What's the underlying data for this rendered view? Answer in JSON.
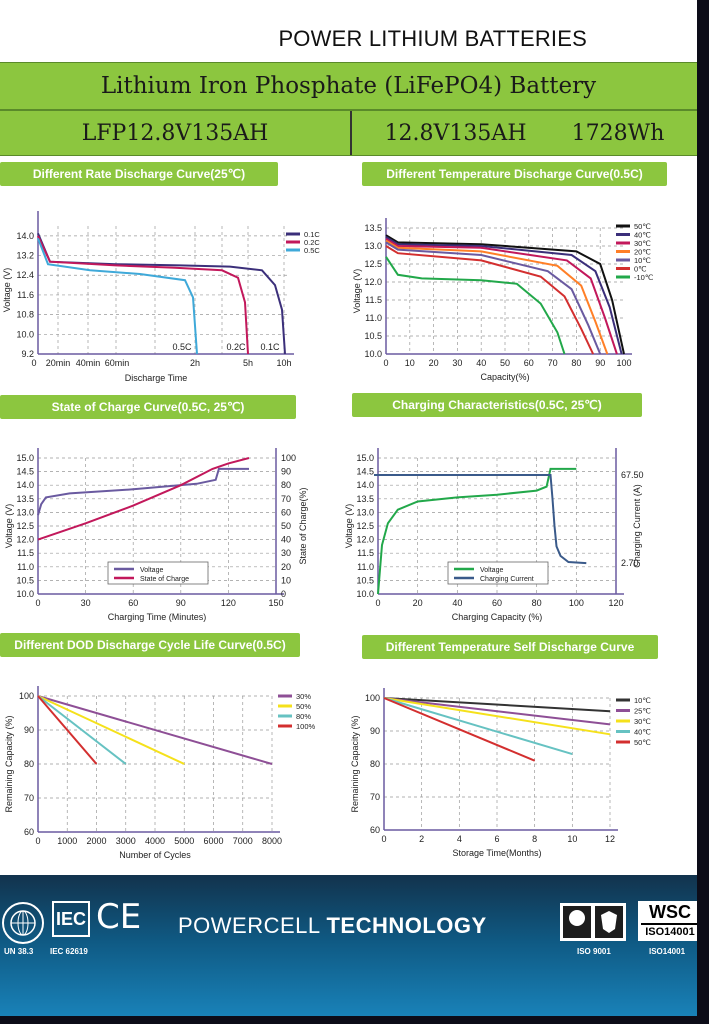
{
  "header": {
    "title": "POWER LITHIUM BATTERIES"
  },
  "spec": {
    "product_type": "Lithium Iron Phosphate (LiFePO4) Battery",
    "model": "LFP12.8V135AH",
    "rating": "12.8V135AH",
    "energy": "1728Wh"
  },
  "charts": {
    "c1": {
      "title": "Different Rate Discharge Curve(25℃)"
    },
    "c2": {
      "title": "Different Temperature Discharge Curve(0.5C)"
    },
    "c3": {
      "title": "State of Charge Curve(0.5C, 25℃)"
    },
    "c4": {
      "title": "Charging Characteristics(0.5C, 25℃)"
    },
    "c5": {
      "title": "Different DOD Discharge Cycle Life Curve(0.5C)"
    },
    "c6": {
      "title": "Different Temperature Self Discharge Curve"
    }
  },
  "chart_data": [
    {
      "type": "line",
      "title": "Different Rate Discharge Curve(25℃)",
      "xlabel": "Discharge Time",
      "ylabel": "Voltage (V)",
      "x_tick_labels": [
        "0",
        "20min",
        "40min",
        "60min",
        "2h",
        "5h",
        "10h"
      ],
      "y_ticks": [
        9.2,
        10.0,
        10.8,
        11.6,
        12.4,
        13.2,
        14.0
      ],
      "ylim": [
        9.2,
        14.4
      ],
      "legend": "top-right",
      "curve_labels": [
        "0.5C",
        "0.2C",
        "0.1C"
      ],
      "series": [
        {
          "name": "0.1C",
          "color": "#3b2f7a",
          "x": [
            0,
            0.2,
            1,
            3,
            6,
            8,
            8.7,
            9.1,
            9.25
          ],
          "y": [
            14.1,
            12.95,
            12.85,
            12.8,
            12.75,
            12.6,
            12.0,
            11.0,
            9.2
          ]
        },
        {
          "name": "0.2C",
          "color": "#c2185b",
          "x": [
            0,
            0.2,
            1,
            3,
            5,
            6,
            6.4,
            6.55
          ],
          "y": [
            14.0,
            12.95,
            12.8,
            12.7,
            12.6,
            12.3,
            11.3,
            9.2
          ]
        },
        {
          "name": "0.5C",
          "color": "#3fa9d9",
          "x": [
            0,
            0.2,
            1,
            2,
            3.8,
            4.4,
            4.5
          ],
          "y": [
            13.9,
            12.85,
            12.6,
            12.45,
            12.2,
            11.5,
            9.2
          ]
        }
      ]
    },
    {
      "type": "line",
      "title": "Different Temperature Discharge Curve(0.5C)",
      "xlabel": "Capacity(%)",
      "ylabel": "Voltage (V)",
      "x_ticks": [
        0,
        10,
        20,
        30,
        40,
        50,
        60,
        70,
        80,
        90,
        100
      ],
      "y_ticks": [
        10.0,
        10.5,
        11.0,
        11.5,
        12.0,
        12.5,
        13.0,
        13.5
      ],
      "xlim": [
        0,
        100
      ],
      "ylim": [
        10.0,
        13.5
      ],
      "legend": "top-right",
      "series": [
        {
          "name": "50℃",
          "color": "#111111",
          "x": [
            0,
            5,
            40,
            80,
            90,
            95,
            100
          ],
          "y": [
            13.3,
            13.1,
            13.05,
            12.85,
            12.5,
            11.5,
            10.0
          ]
        },
        {
          "name": "40℃",
          "color": "#3b2f7a",
          "x": [
            0,
            5,
            40,
            78,
            88,
            94,
            99
          ],
          "y": [
            13.25,
            13.05,
            13.0,
            12.75,
            12.3,
            11.3,
            10.0
          ]
        },
        {
          "name": "30℃",
          "color": "#c2185b",
          "x": [
            0,
            5,
            40,
            76,
            86,
            92,
            97
          ],
          "y": [
            13.2,
            13.0,
            12.95,
            12.6,
            12.1,
            11.0,
            10.0
          ]
        },
        {
          "name": "20℃",
          "color": "#ff7f27",
          "x": [
            0,
            5,
            40,
            72,
            82,
            88,
            93
          ],
          "y": [
            13.15,
            12.95,
            12.85,
            12.45,
            11.9,
            10.9,
            10.0
          ]
        },
        {
          "name": "10℃",
          "color": "#6a5aa0",
          "x": [
            0,
            5,
            40,
            68,
            78,
            85,
            90
          ],
          "y": [
            13.1,
            12.9,
            12.75,
            12.3,
            11.8,
            10.8,
            10.0
          ]
        },
        {
          "name": "0℃",
          "color": "#d32f2f",
          "x": [
            0,
            5,
            40,
            65,
            75,
            82,
            87
          ],
          "y": [
            13.0,
            12.8,
            12.6,
            12.15,
            11.6,
            10.7,
            10.0
          ]
        },
        {
          "name": "-10℃",
          "color": "#22a84a",
          "x": [
            0,
            5,
            15,
            40,
            55,
            65,
            72,
            75
          ],
          "y": [
            12.7,
            12.2,
            12.1,
            12.05,
            11.95,
            11.4,
            10.6,
            10.0
          ]
        }
      ]
    },
    {
      "type": "line",
      "title": "State of Charge Curve(0.5C, 25℃)",
      "xlabel": "Charging Time (Minutes)",
      "ylabel": "Voltage (V)",
      "ylabel2": "State of Charge(%)",
      "x_ticks": [
        0,
        30,
        60,
        90,
        120,
        150
      ],
      "y_ticks": [
        10.0,
        10.5,
        11.0,
        11.5,
        12.0,
        12.5,
        13.0,
        13.5,
        14.0,
        14.5,
        15.0
      ],
      "y2_ticks": [
        0,
        10,
        20,
        30,
        40,
        50,
        60,
        70,
        80,
        90,
        100
      ],
      "xlim": [
        0,
        150
      ],
      "ylim": [
        10.0,
        15.0
      ],
      "y2lim": [
        0,
        100
      ],
      "legend": "bottom-left",
      "series": [
        {
          "name": "Voltage",
          "color": "#6a5aa0",
          "axis": "left",
          "x": [
            0,
            2,
            5,
            20,
            60,
            100,
            112,
            114,
            120,
            133
          ],
          "y": [
            12.9,
            13.3,
            13.55,
            13.7,
            13.85,
            14.05,
            14.2,
            14.6,
            14.6,
            14.6
          ]
        },
        {
          "name": "State of Charge",
          "color": "#c2185b",
          "axis": "right",
          "x": [
            0,
            30,
            60,
            90,
            110,
            120,
            133
          ],
          "y": [
            40,
            52,
            65,
            80,
            92,
            96,
            100
          ]
        }
      ]
    },
    {
      "type": "line",
      "title": "Charging Characteristics(0.5C, 25℃)",
      "xlabel": "Charging Capacity (%)",
      "ylabel": "Voltage (V)",
      "ylabel2": "Charging Current (A)",
      "x_ticks": [
        0,
        20,
        40,
        60,
        80,
        100,
        120
      ],
      "y_ticks": [
        10.0,
        10.5,
        11.0,
        11.5,
        12.0,
        12.5,
        13.0,
        13.5,
        14.0,
        14.5,
        15.0
      ],
      "y2_ticks": [
        2.7,
        67.5
      ],
      "xlim": [
        0,
        120
      ],
      "ylim": [
        10.0,
        15.0
      ],
      "legend": "bottom-left",
      "series": [
        {
          "name": "Voltage",
          "color": "#22a84a",
          "axis": "left",
          "x": [
            0,
            2,
            5,
            10,
            20,
            40,
            60,
            80,
            85,
            87,
            90,
            100
          ],
          "y": [
            10.0,
            11.8,
            12.6,
            13.1,
            13.4,
            13.55,
            13.65,
            13.8,
            13.95,
            14.6,
            14.6,
            14.6
          ]
        },
        {
          "name": "Charging Current",
          "color": "#3a5a8a",
          "axis": "right",
          "x": [
            -2,
            30,
            60,
            87,
            88,
            89,
            90,
            92,
            96,
            105
          ],
          "y": [
            67.5,
            67.5,
            67.5,
            67.5,
            50,
            30,
            15,
            8,
            3.5,
            2.7
          ]
        }
      ]
    },
    {
      "type": "line",
      "title": "Different DOD Discharge Cycle Life Curve(0.5C)",
      "xlabel": "Number of Cycles",
      "ylabel": "Remaining Capacity (%)",
      "x_ticks": [
        0,
        1000,
        2000,
        3000,
        4000,
        5000,
        6000,
        7000,
        8000
      ],
      "y_ticks": [
        60,
        70,
        80,
        90,
        100
      ],
      "xlim": [
        0,
        8000
      ],
      "ylim": [
        60,
        100
      ],
      "legend": "top-right",
      "series": [
        {
          "name": "30%",
          "color": "#8e4f96",
          "x": [
            0,
            8000
          ],
          "y": [
            100,
            80
          ]
        },
        {
          "name": "50%",
          "color": "#f5e11b",
          "x": [
            0,
            5000
          ],
          "y": [
            100,
            80
          ]
        },
        {
          "name": "80%",
          "color": "#66c2c2",
          "x": [
            0,
            3000
          ],
          "y": [
            100,
            80
          ]
        },
        {
          "name": "100%",
          "color": "#d32f2f",
          "x": [
            0,
            2000
          ],
          "y": [
            100,
            80
          ]
        }
      ]
    },
    {
      "type": "line",
      "title": "Different Temperature Self Discharge Curve",
      "xlabel": "Storage Time(Months)",
      "ylabel": "Remaining Capacity (%)",
      "x_ticks": [
        0,
        2,
        4,
        6,
        8,
        10,
        12
      ],
      "y_ticks": [
        60,
        70,
        80,
        90,
        100
      ],
      "xlim": [
        0,
        12
      ],
      "ylim": [
        60,
        100
      ],
      "legend": "top-right",
      "series": [
        {
          "name": "10℃",
          "color": "#333333",
          "x": [
            0,
            12
          ],
          "y": [
            100,
            96
          ]
        },
        {
          "name": "25℃",
          "color": "#8e4f96",
          "x": [
            0,
            12
          ],
          "y": [
            100,
            92
          ]
        },
        {
          "name": "30℃",
          "color": "#f5e11b",
          "x": [
            0,
            12
          ],
          "y": [
            100,
            89
          ]
        },
        {
          "name": "40℃",
          "color": "#66c2c2",
          "x": [
            0,
            10
          ],
          "y": [
            100,
            83
          ]
        },
        {
          "name": "50℃",
          "color": "#d32f2f",
          "x": [
            0,
            8
          ],
          "y": [
            100,
            81
          ]
        }
      ]
    }
  ],
  "footer": {
    "brand_light": "POWERCELL",
    "brand_bold": "TECHNOLOGY",
    "cert_un": "UN 38.3",
    "cert_iec": "IEC 62619",
    "iec_logo": "IEC",
    "ce_mark": "CE",
    "cert_iso9001": "ISO 9001",
    "cert_iso14001": "ISO14001",
    "wsc_logo": "WSC",
    "wsc_iso": "ISO14001"
  }
}
